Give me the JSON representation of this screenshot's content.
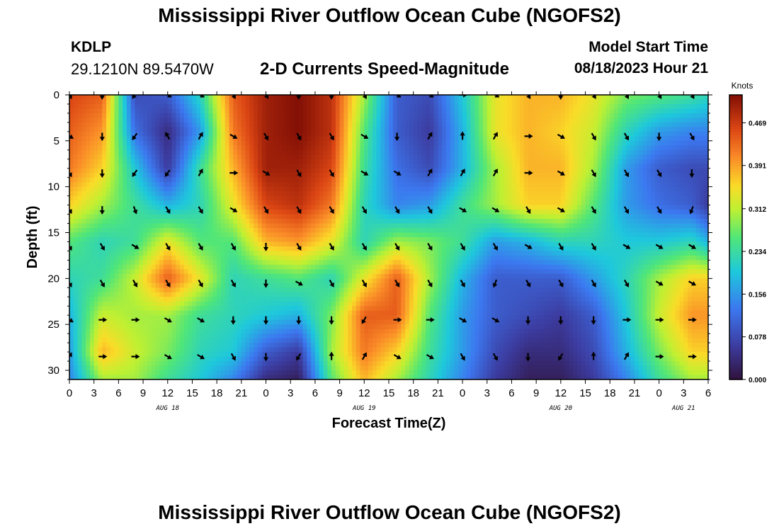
{
  "header": {
    "title": "Mississippi River Outflow Ocean Cube (NGOFS2)",
    "station_id": "KDLP",
    "station_coords": "29.1210N  89.5470W",
    "subtitle": "2-D Currents Speed-Magnitude",
    "model_start_label": "Model Start Time",
    "model_start_time": "08/18/2023 Hour 21"
  },
  "footer": {
    "title": "Mississippi River Outflow Ocean Cube (NGOFS2)"
  },
  "chart_data": {
    "type": "heatmap",
    "xlabel": "Forecast Time(Z)",
    "ylabel": "Depth (ft)",
    "x_range_hours": [
      0,
      78
    ],
    "x_tick_labels": [
      "0",
      "3",
      "6",
      "9",
      "12",
      "15",
      "18",
      "21",
      "0",
      "3",
      "6",
      "9",
      "12",
      "15",
      "18",
      "21",
      "0",
      "3",
      "6",
      "9",
      "12",
      "15",
      "18",
      "21",
      "0",
      "3",
      "6"
    ],
    "date_labels": [
      {
        "label": "AUG 18",
        "hour": 12
      },
      {
        "label": "AUG 19",
        "hour": 36
      },
      {
        "label": "AUG 20",
        "hour": 60
      },
      {
        "label": "AUG 21",
        "hour": 75
      }
    ],
    "ylim": [
      0,
      31
    ],
    "y_ticks": [
      0,
      5,
      10,
      15,
      20,
      25,
      30
    ],
    "colorbar": {
      "title": "Knots",
      "vmin": 0.0,
      "vmax": 0.52,
      "ticks": [
        "0.000",
        "0.078",
        "0.156",
        "0.234",
        "0.312",
        "0.391",
        "0.469"
      ]
    },
    "speed_grid": {
      "depths_ft": [
        0,
        4,
        8,
        12,
        16,
        20,
        24,
        28,
        31
      ],
      "hours": [
        0,
        4,
        8,
        12,
        16,
        20,
        24,
        28,
        32,
        36,
        40,
        44,
        48,
        52,
        56,
        60,
        64,
        68,
        72,
        76,
        78
      ],
      "values_knots": [
        [
          0.46,
          0.44,
          0.08,
          0.1,
          0.22,
          0.44,
          0.5,
          0.52,
          0.48,
          0.3,
          0.1,
          0.08,
          0.2,
          0.34,
          0.38,
          0.38,
          0.34,
          0.28,
          0.26,
          0.24,
          0.22
        ],
        [
          0.44,
          0.4,
          0.12,
          0.04,
          0.16,
          0.42,
          0.5,
          0.52,
          0.48,
          0.26,
          0.1,
          0.06,
          0.18,
          0.34,
          0.38,
          0.36,
          0.32,
          0.22,
          0.16,
          0.14,
          0.14
        ],
        [
          0.42,
          0.36,
          0.2,
          0.06,
          0.24,
          0.38,
          0.5,
          0.5,
          0.46,
          0.24,
          0.12,
          0.08,
          0.18,
          0.3,
          0.38,
          0.38,
          0.3,
          0.16,
          0.1,
          0.08,
          0.08
        ],
        [
          0.36,
          0.3,
          0.24,
          0.18,
          0.22,
          0.34,
          0.46,
          0.48,
          0.42,
          0.22,
          0.14,
          0.16,
          0.24,
          0.3,
          0.36,
          0.36,
          0.26,
          0.16,
          0.12,
          0.1,
          0.06
        ],
        [
          0.26,
          0.22,
          0.24,
          0.34,
          0.26,
          0.26,
          0.38,
          0.4,
          0.34,
          0.22,
          0.3,
          0.28,
          0.24,
          0.16,
          0.18,
          0.22,
          0.22,
          0.2,
          0.2,
          0.22,
          0.18
        ],
        [
          0.22,
          0.24,
          0.32,
          0.44,
          0.34,
          0.22,
          0.24,
          0.26,
          0.22,
          0.34,
          0.44,
          0.3,
          0.18,
          0.1,
          0.1,
          0.1,
          0.16,
          0.22,
          0.3,
          0.36,
          0.36
        ],
        [
          0.18,
          0.32,
          0.3,
          0.3,
          0.24,
          0.22,
          0.2,
          0.18,
          0.28,
          0.44,
          0.44,
          0.26,
          0.16,
          0.1,
          0.08,
          0.06,
          0.1,
          0.2,
          0.32,
          0.4,
          0.4
        ],
        [
          0.16,
          0.38,
          0.32,
          0.28,
          0.22,
          0.2,
          0.1,
          0.06,
          0.3,
          0.42,
          0.36,
          0.24,
          0.16,
          0.08,
          0.04,
          0.04,
          0.08,
          0.18,
          0.28,
          0.36,
          0.36
        ],
        [
          0.14,
          0.3,
          0.3,
          0.24,
          0.2,
          0.14,
          0.04,
          0.02,
          0.26,
          0.38,
          0.3,
          0.22,
          0.14,
          0.06,
          0.02,
          0.02,
          0.06,
          0.14,
          0.24,
          0.3,
          0.3
        ]
      ]
    },
    "vector_hours": [
      0,
      4,
      8,
      12,
      16,
      20,
      24,
      28,
      32,
      36,
      40,
      44,
      48,
      52,
      56,
      60,
      64,
      68,
      72,
      76
    ],
    "vector_depths_ft": [
      0,
      4.5,
      8.5,
      12.5,
      16.5,
      20.5,
      24.5,
      28.5
    ],
    "vector_dirs_deg": [
      [
        150,
        180,
        215,
        120,
        120,
        150,
        150,
        180,
        180,
        150,
        120,
        120,
        90,
        120,
        150,
        180,
        150,
        150,
        150,
        150
      ],
      [
        120,
        180,
        215,
        330,
        30,
        120,
        150,
        150,
        150,
        120,
        180,
        30,
        0,
        30,
        90,
        120,
        150,
        150,
        180,
        150
      ],
      [
        150,
        180,
        215,
        215,
        30,
        90,
        120,
        150,
        150,
        120,
        120,
        30,
        30,
        30,
        90,
        120,
        150,
        150,
        150,
        180
      ],
      [
        150,
        180,
        160,
        150,
        150,
        120,
        150,
        150,
        150,
        150,
        150,
        150,
        120,
        120,
        150,
        120,
        150,
        150,
        150,
        200
      ],
      [
        150,
        150,
        120,
        150,
        150,
        150,
        180,
        150,
        150,
        150,
        150,
        150,
        150,
        150,
        120,
        150,
        150,
        120,
        120,
        120
      ],
      [
        150,
        150,
        150,
        150,
        150,
        150,
        180,
        120,
        150,
        150,
        150,
        150,
        150,
        200,
        150,
        150,
        150,
        150,
        120,
        120
      ],
      [
        120,
        90,
        90,
        120,
        120,
        180,
        180,
        180,
        180,
        210,
        90,
        90,
        120,
        120,
        180,
        180,
        180,
        90,
        90,
        90
      ],
      [
        30,
        90,
        90,
        120,
        120,
        150,
        180,
        210,
        0,
        30,
        120,
        120,
        150,
        150,
        180,
        210,
        0,
        30,
        90,
        90
      ]
    ]
  }
}
